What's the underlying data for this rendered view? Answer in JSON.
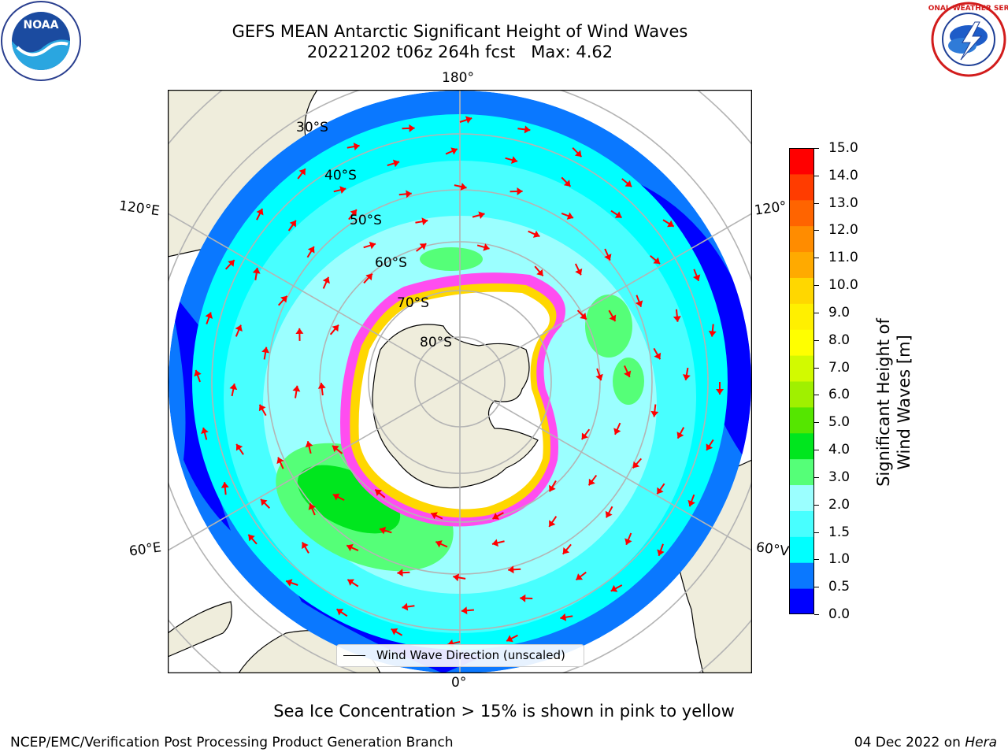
{
  "title": {
    "line1": "GEFS MEAN Antarctic Significant Height of Wind Waves",
    "line2": "20221202 t06z 264h fcst   Max: 4.62"
  },
  "map": {
    "longitude_labels": {
      "top": "180°",
      "bottom": "0°",
      "upper_left": "120°E",
      "upper_right": "120°",
      "lower_left": "60°E",
      "lower_right": "60°V"
    },
    "latitude_labels": [
      "30°S",
      "40°S",
      "50°S",
      "60°S",
      "70°S",
      "80°S"
    ],
    "legend": "Wind Wave Direction (unscaled)",
    "colors": {
      "land": "#efeddc",
      "ice": "#ffffff",
      "grid": "#b4b4b4",
      "arrow": "#ff0000"
    }
  },
  "colorbar": {
    "label": "Significant Height of Wind Waves [m]",
    "ticks": [
      "15.0",
      "14.0",
      "13.0",
      "12.0",
      "11.0",
      "10.0",
      "9.0",
      "8.0",
      "7.0",
      "6.0",
      "5.0",
      "4.0",
      "3.0",
      "2.0",
      "1.5",
      "1.0",
      "0.5",
      "0.0"
    ],
    "colors": [
      "#0000ff",
      "#0a78ff",
      "#00ffff",
      "#48ffff",
      "#9bffff",
      "#55ff78",
      "#00e61e",
      "#55e600",
      "#a0f000",
      "#d2fa00",
      "#ffff00",
      "#fff000",
      "#ffd700",
      "#ffaa00",
      "#ff8c00",
      "#ff6400",
      "#ff3c00",
      "#ff0000"
    ]
  },
  "caption": "Sea Ice Concentration > 15% is shown in pink to yellow",
  "footer": {
    "left": "NCEP/EMC/Verification Post Processing Product Generation Branch",
    "right": "04 Dec 2022 on",
    "right_italic": "Hera"
  },
  "logos": {
    "left": {
      "name": "noaa-logo",
      "text": "NOAA"
    },
    "right": {
      "name": "nws-logo",
      "text": "NATIONAL WEATHER SERVICE"
    }
  }
}
